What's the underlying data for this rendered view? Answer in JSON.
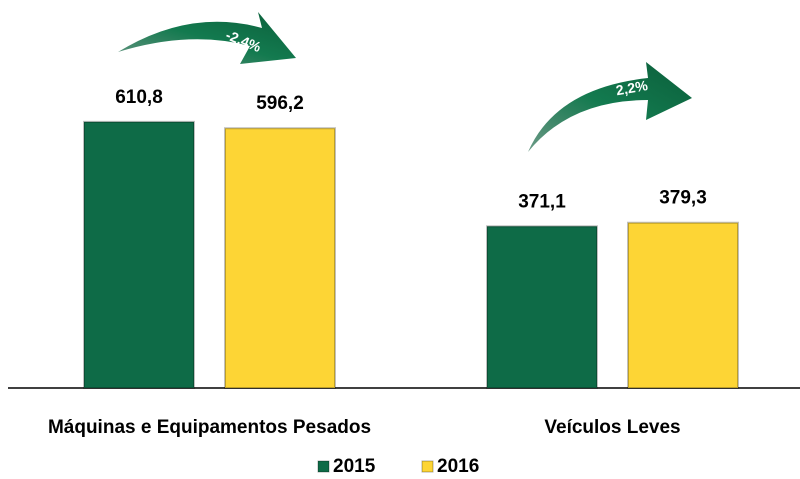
{
  "chart_data": {
    "type": "bar",
    "categories": [
      "Máquinas e Equipamentos Pesados",
      "Veículos Leves"
    ],
    "series": [
      {
        "name": "2015",
        "color": "#0e6b47",
        "values": [
          610.8,
          371.1
        ],
        "value_labels": [
          "610,8",
          "371,1"
        ]
      },
      {
        "name": "2016",
        "color": "#fdd535",
        "values": [
          596.2,
          379.3
        ],
        "value_labels": [
          "596,2",
          "379,3"
        ]
      }
    ],
    "annotations": [
      "-2,4%",
      "2,2%"
    ],
    "ylim": [
      0,
      700
    ],
    "legend": "bottom"
  }
}
